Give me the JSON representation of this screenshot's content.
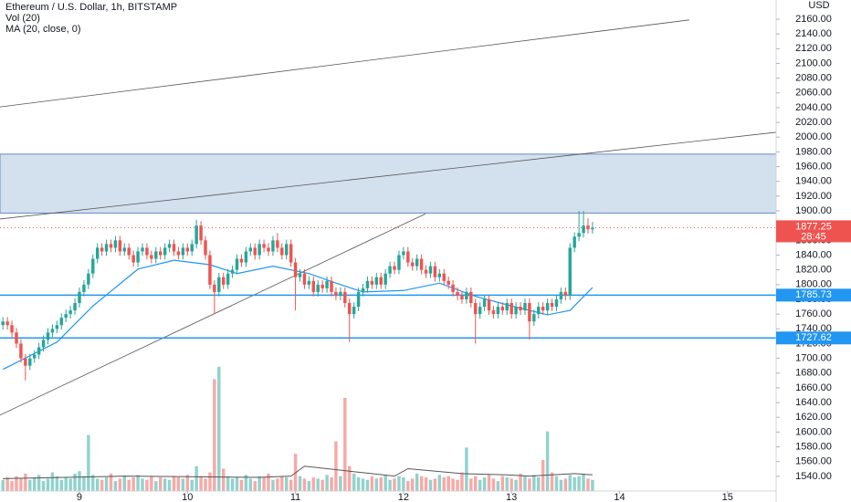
{
  "chart_data": {
    "type": "candlestick",
    "title": "Ethereum / U.S. Dollar, 1h, BITSTAMP",
    "indicators": [
      "Vol (20)",
      "MA (20, close, 0)"
    ],
    "currency": "USD",
    "xlim": [
      -17.65,
      154.8
    ],
    "xticks": [
      {
        "value": 0,
        "label": "9"
      },
      {
        "value": 24,
        "label": "10"
      },
      {
        "value": 48,
        "label": "11"
      },
      {
        "value": 72,
        "label": "12"
      },
      {
        "value": 96,
        "label": "13"
      },
      {
        "value": 120,
        "label": "14"
      },
      {
        "value": 144,
        "label": "15"
      }
    ],
    "ylim": [
      1520,
      2186
    ],
    "yticks": [
      {
        "value": 1540,
        "label": "1540.00"
      },
      {
        "value": 1560,
        "label": "1560.00"
      },
      {
        "value": 1580,
        "label": "1580.00"
      },
      {
        "value": 1600,
        "label": "1600.00"
      },
      {
        "value": 1620,
        "label": "1620.00"
      },
      {
        "value": 1640,
        "label": "1640.00"
      },
      {
        "value": 1660,
        "label": "1660.00"
      },
      {
        "value": 1680,
        "label": "1680.00"
      },
      {
        "value": 1700,
        "label": "1700.00"
      },
      {
        "value": 1720,
        "label": "1720.00"
      },
      {
        "value": 1740,
        "label": "1740.00"
      },
      {
        "value": 1760,
        "label": "1760.00"
      },
      {
        "value": 1780,
        "label": "1780.00"
      },
      {
        "value": 1800,
        "label": "1800.00"
      },
      {
        "value": 1820,
        "label": "1820.00"
      },
      {
        "value": 1840,
        "label": "1840.00"
      },
      {
        "value": 1860,
        "label": "1860.00"
      },
      {
        "value": 1880,
        "label": "1880.00"
      },
      {
        "value": 1900,
        "label": "1900.00"
      },
      {
        "value": 1920,
        "label": "1920.00"
      },
      {
        "value": 1940,
        "label": "1940.00"
      },
      {
        "value": 1960,
        "label": "1960.00"
      },
      {
        "value": 1980,
        "label": "1980.00"
      },
      {
        "value": 2000,
        "label": "2000.00"
      },
      {
        "value": 2020,
        "label": "2020.00"
      },
      {
        "value": 2040,
        "label": "2040.00"
      },
      {
        "value": 2060,
        "label": "2060.00"
      },
      {
        "value": 2080,
        "label": "2080.00"
      },
      {
        "value": 2100,
        "label": "2100.00"
      },
      {
        "value": 2120,
        "label": "2120.00"
      },
      {
        "value": 2140,
        "label": "2140.00"
      },
      {
        "value": 2160,
        "label": "2160.00"
      }
    ],
    "up_color": "#26a69a",
    "down_color": "#ef5350",
    "x": [
      -17,
      -16,
      -15,
      -14,
      -13,
      -12,
      -11,
      -10,
      -9,
      -8,
      -7,
      -6,
      -5,
      -4,
      -3,
      -2,
      -1,
      0,
      1,
      2,
      3,
      4,
      5,
      6,
      7,
      8,
      9,
      10,
      11,
      12,
      13,
      14,
      15,
      16,
      17,
      18,
      19,
      20,
      21,
      22,
      23,
      24,
      25,
      26,
      27,
      28,
      29,
      30,
      31,
      32,
      33,
      34,
      35,
      36,
      37,
      38,
      39,
      40,
      41,
      42,
      43,
      44,
      45,
      46,
      47,
      48,
      49,
      50,
      51,
      52,
      53,
      54,
      55,
      56,
      57,
      58,
      59,
      60,
      61,
      62,
      63,
      64,
      65,
      66,
      67,
      68,
      69,
      70,
      71,
      72,
      73,
      74,
      75,
      76,
      77,
      78,
      79,
      80,
      81,
      82,
      83,
      84,
      85,
      86,
      87,
      88,
      89,
      90,
      91,
      92,
      93,
      94,
      95,
      96,
      97,
      98,
      99,
      100,
      101,
      102,
      103,
      104,
      105,
      106,
      107,
      108,
      109,
      110,
      111,
      112,
      113,
      114
    ],
    "open": [
      1745,
      1750,
      1745,
      1735,
      1720,
      1700,
      1690,
      1700,
      1705,
      1715,
      1725,
      1735,
      1740,
      1745,
      1755,
      1760,
      1765,
      1775,
      1790,
      1800,
      1815,
      1835,
      1850,
      1845,
      1855,
      1850,
      1860,
      1845,
      1850,
      1840,
      1830,
      1845,
      1850,
      1840,
      1835,
      1845,
      1840,
      1850,
      1855,
      1845,
      1840,
      1850,
      1845,
      1855,
      1880,
      1860,
      1840,
      1800,
      1790,
      1810,
      1800,
      1815,
      1820,
      1835,
      1830,
      1845,
      1850,
      1840,
      1855,
      1850,
      1845,
      1860,
      1850,
      1840,
      1855,
      1830,
      1810,
      1815,
      1800,
      1805,
      1790,
      1800,
      1795,
      1805,
      1790,
      1785,
      1790,
      1775,
      1760,
      1770,
      1790,
      1795,
      1805,
      1800,
      1810,
      1800,
      1815,
      1825,
      1820,
      1840,
      1845,
      1830,
      1825,
      1835,
      1820,
      1815,
      1825,
      1810,
      1815,
      1805,
      1800,
      1790,
      1785,
      1780,
      1790,
      1775,
      1760,
      1770,
      1780,
      1765,
      1760,
      1770,
      1765,
      1775,
      1760,
      1770,
      1765,
      1775,
      1750,
      1760,
      1770,
      1765,
      1775,
      1770,
      1780,
      1790,
      1785,
      1850,
      1865,
      1870,
      1880,
      1875
    ],
    "high": [
      1756,
      1756,
      1751,
      1741,
      1726,
      1706,
      1706,
      1711,
      1721,
      1731,
      1741,
      1746,
      1751,
      1761,
      1766,
      1771,
      1781,
      1796,
      1806,
      1821,
      1841,
      1856,
      1856,
      1861,
      1861,
      1866,
      1866,
      1856,
      1856,
      1846,
      1851,
      1856,
      1856,
      1846,
      1851,
      1851,
      1856,
      1861,
      1861,
      1851,
      1856,
      1856,
      1861,
      1888,
      1886,
      1866,
      1846,
      1806,
      1816,
      1816,
      1821,
      1826,
      1841,
      1841,
      1851,
      1856,
      1856,
      1861,
      1861,
      1856,
      1866,
      1870,
      1856,
      1861,
      1861,
      1836,
      1821,
      1821,
      1811,
      1811,
      1806,
      1806,
      1811,
      1811,
      1796,
      1796,
      1796,
      1781,
      1776,
      1796,
      1801,
      1811,
      1811,
      1816,
      1816,
      1821,
      1831,
      1831,
      1846,
      1851,
      1851,
      1836,
      1841,
      1841,
      1826,
      1831,
      1831,
      1821,
      1821,
      1811,
      1806,
      1796,
      1791,
      1796,
      1796,
      1781,
      1776,
      1786,
      1786,
      1771,
      1776,
      1776,
      1781,
      1781,
      1776,
      1776,
      1781,
      1781,
      1766,
      1776,
      1776,
      1781,
      1781,
      1786,
      1796,
      1796,
      1856,
      1871,
      1900,
      1900,
      1890,
      1885
    ],
    "low": [
      1739,
      1739,
      1729,
      1714,
      1694,
      1670,
      1684,
      1694,
      1699,
      1709,
      1719,
      1729,
      1734,
      1739,
      1749,
      1754,
      1759,
      1769,
      1784,
      1794,
      1809,
      1829,
      1839,
      1839,
      1844,
      1844,
      1839,
      1839,
      1834,
      1824,
      1824,
      1839,
      1834,
      1829,
      1829,
      1834,
      1834,
      1844,
      1839,
      1834,
      1834,
      1839,
      1839,
      1849,
      1854,
      1834,
      1794,
      1760,
      1784,
      1794,
      1794,
      1809,
      1814,
      1824,
      1824,
      1839,
      1834,
      1834,
      1844,
      1839,
      1839,
      1844,
      1834,
      1834,
      1824,
      1765,
      1804,
      1794,
      1794,
      1784,
      1784,
      1789,
      1789,
      1784,
      1779,
      1779,
      1769,
      1722,
      1754,
      1764,
      1784,
      1789,
      1794,
      1794,
      1794,
      1794,
      1809,
      1814,
      1814,
      1834,
      1824,
      1819,
      1819,
      1814,
      1809,
      1809,
      1804,
      1804,
      1799,
      1794,
      1784,
      1779,
      1774,
      1774,
      1769,
      1720,
      1754,
      1764,
      1759,
      1754,
      1754,
      1759,
      1759,
      1754,
      1754,
      1759,
      1759,
      1725,
      1744,
      1754,
      1759,
      1759,
      1764,
      1764,
      1774,
      1779,
      1779,
      1844,
      1859,
      1864,
      1869,
      1869
    ],
    "close": [
      1750,
      1745,
      1735,
      1720,
      1700,
      1690,
      1700,
      1705,
      1715,
      1725,
      1735,
      1740,
      1745,
      1755,
      1760,
      1765,
      1775,
      1790,
      1800,
      1815,
      1835,
      1850,
      1845,
      1855,
      1850,
      1860,
      1845,
      1850,
      1840,
      1830,
      1845,
      1850,
      1840,
      1835,
      1845,
      1840,
      1850,
      1855,
      1845,
      1840,
      1850,
      1845,
      1855,
      1880,
      1860,
      1840,
      1800,
      1790,
      1810,
      1800,
      1815,
      1820,
      1835,
      1830,
      1845,
      1850,
      1840,
      1855,
      1850,
      1845,
      1860,
      1850,
      1840,
      1855,
      1830,
      1810,
      1815,
      1800,
      1805,
      1790,
      1800,
      1795,
      1805,
      1790,
      1785,
      1790,
      1775,
      1760,
      1770,
      1790,
      1795,
      1805,
      1800,
      1810,
      1800,
      1815,
      1825,
      1820,
      1840,
      1845,
      1830,
      1825,
      1835,
      1820,
      1815,
      1825,
      1810,
      1815,
      1805,
      1800,
      1790,
      1785,
      1780,
      1790,
      1775,
      1760,
      1770,
      1780,
      1765,
      1760,
      1770,
      1765,
      1775,
      1760,
      1770,
      1765,
      1775,
      1750,
      1760,
      1770,
      1765,
      1775,
      1770,
      1780,
      1790,
      1785,
      1850,
      1865,
      1870,
      1880,
      1875,
      1877.25
    ],
    "volume_lim": [
      0,
      395
    ],
    "volume": [
      9,
      11,
      8,
      12,
      10,
      14,
      9,
      11,
      13,
      8,
      10,
      15,
      12,
      9,
      11,
      10,
      14,
      16,
      12,
      45,
      13,
      10,
      9,
      11,
      14,
      8,
      10,
      12,
      9,
      11,
      13,
      10,
      9,
      12,
      8,
      11,
      10,
      9,
      12,
      11,
      10,
      13,
      9,
      20,
      12,
      10,
      15,
      90,
      100,
      18,
      12,
      10,
      11,
      9,
      13,
      10,
      8,
      12,
      11,
      14,
      9,
      10,
      12,
      11,
      9,
      30,
      12,
      10,
      8,
      11,
      10,
      9,
      13,
      11,
      40,
      12,
      75,
      20,
      14,
      11,
      10,
      9,
      12,
      10,
      11,
      13,
      9,
      10,
      12,
      11,
      8,
      10,
      14,
      12,
      11,
      9,
      10,
      13,
      11,
      12,
      10,
      9,
      15,
      35,
      10,
      12,
      9,
      11,
      13,
      10,
      8,
      12,
      11,
      10,
      9,
      14,
      12,
      10,
      13,
      11,
      25,
      48,
      15,
      12,
      9,
      10,
      13,
      11,
      12,
      14,
      10,
      9
    ],
    "ma": {
      "x": [
        -17,
        -5,
        3,
        13,
        21,
        29,
        35,
        43,
        51,
        57,
        63,
        72,
        80,
        88,
        96,
        104,
        109,
        114
      ],
      "values": [
        1685,
        1722,
        1771,
        1821,
        1833,
        1827,
        1815,
        1825,
        1815,
        1802,
        1790,
        1792,
        1802,
        1784,
        1771,
        1759,
        1765,
        1796
      ],
      "color": "#2196f3"
    },
    "volume_ma": {
      "x": [
        -17,
        10,
        40,
        47,
        50,
        60,
        70,
        73,
        85,
        95,
        100,
        110,
        114
      ],
      "values": [
        10,
        12,
        11,
        12,
        20,
        16,
        12,
        18,
        14,
        13,
        12,
        14,
        13
      ],
      "color": "#555555"
    },
    "zone": [
      1897,
      1977
    ],
    "trendlines": [
      {
        "x": [
          -17.65,
          135.5
        ],
        "y": [
          2041,
          2159
        ]
      },
      {
        "x": [
          -17.65,
          154.8
        ],
        "y": [
          1889,
          2006.6
        ]
      },
      {
        "x": [
          -17.65,
          76.9
        ],
        "y": [
          1623,
          1896
        ]
      }
    ],
    "price_lines": [
      1785.73,
      1727.62
    ],
    "last_price": 1877.25,
    "countdown": "28:45"
  }
}
